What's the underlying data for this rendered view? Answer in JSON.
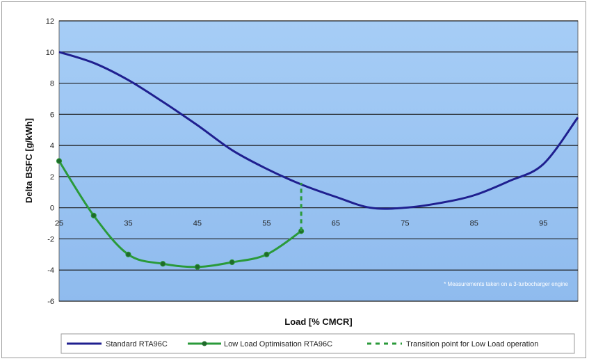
{
  "chart_data": {
    "type": "line",
    "title": "",
    "xlabel": "Load [% CMCR]",
    "ylabel": "Delta BSFC [g/kWh]",
    "xlim": [
      25,
      100
    ],
    "ylim": [
      -6,
      12
    ],
    "xticks": [
      25,
      35,
      45,
      55,
      65,
      75,
      85,
      95
    ],
    "yticks": [
      -6,
      -4,
      -2,
      0,
      2,
      4,
      6,
      8,
      10,
      12
    ],
    "grid": true,
    "legend_position": "bottom",
    "annotation": "* Measurements taken on a 3-turbocharger engine",
    "series": [
      {
        "name": "Standard RTA96C",
        "color": "#1f1f8f",
        "style": "solid",
        "markers": false,
        "points": [
          [
            25,
            10
          ],
          [
            30,
            9.3
          ],
          [
            35,
            8.2
          ],
          [
            40,
            6.8
          ],
          [
            45,
            5.3
          ],
          [
            50,
            3.7
          ],
          [
            55,
            2.5
          ],
          [
            60,
            1.5
          ],
          [
            65,
            0.7
          ],
          [
            70,
            0.0
          ],
          [
            75,
            0.0
          ],
          [
            80,
            0.3
          ],
          [
            85,
            0.8
          ],
          [
            90,
            1.7
          ],
          [
            95,
            2.8
          ],
          [
            100,
            5.8
          ]
        ]
      },
      {
        "name": "Low Load Optimisation RTA96C",
        "color": "#2a9a3a",
        "style": "solid",
        "markers": true,
        "points": [
          [
            25,
            3
          ],
          [
            30,
            -0.5
          ],
          [
            35,
            -3.0
          ],
          [
            40,
            -3.6
          ],
          [
            45,
            -3.8
          ],
          [
            50,
            -3.5
          ],
          [
            55,
            -3.0
          ],
          [
            60,
            -1.5
          ]
        ]
      },
      {
        "name": "Transition point for Low Load operation",
        "color": "#2a9a3a",
        "style": "dashed",
        "markers": false,
        "points": [
          [
            60,
            -1.5
          ],
          [
            60,
            1.6
          ]
        ]
      }
    ]
  }
}
